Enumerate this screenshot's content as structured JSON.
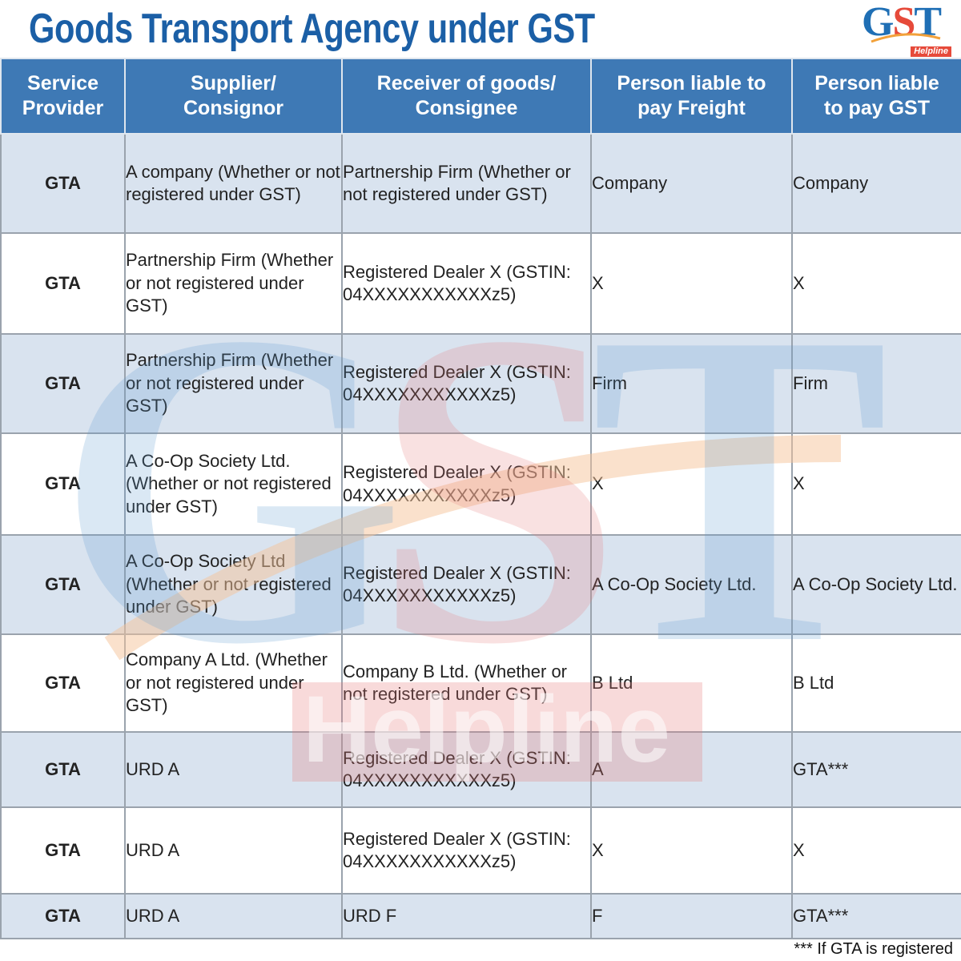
{
  "title": "Goods Transport Agency under GST",
  "logo": {
    "g": "G",
    "s": "S",
    "t": "T",
    "tag": "Helpline"
  },
  "watermark": {
    "letters": "GST",
    "word": "Helpline"
  },
  "headers": {
    "service_provider": "Service Provider",
    "supplier": "Supplier/ Consignor",
    "receiver": "Receiver of goods/ Consignee",
    "freight": "Person liable to pay Freight",
    "gst": "Person liable to pay GST"
  },
  "rows": [
    {
      "sp": "GTA",
      "supplier": "A company (Whether or not registered under GST)",
      "receiver": "Partnership Firm (Whether or not registered under GST)",
      "freight": "Company",
      "gst": "Company"
    },
    {
      "sp": "GTA",
      "supplier": "Partnership Firm (Whether or not registered under GST)",
      "receiver": "Registered Dealer X (GSTIN: 04XXXXXXXXXXXz5)",
      "freight": "X",
      "gst": "X"
    },
    {
      "sp": "GTA",
      "supplier": "Partnership Firm (Whether or not registered under GST)",
      "receiver": "Registered Dealer X (GSTIN: 04XXXXXXXXXXXz5)",
      "freight": "Firm",
      "gst": "Firm"
    },
    {
      "sp": "GTA",
      "supplier": "A Co-Op Society Ltd. (Whether or not registered under GST)",
      "receiver": "Registered Dealer X (GSTIN: 04XXXXXXXXXXXz5)",
      "freight": "X",
      "gst": "X"
    },
    {
      "sp": "GTA",
      "supplier": "A Co-Op Society Ltd (Whether or not registered under GST)",
      "receiver": "Registered Dealer X (GSTIN: 04XXXXXXXXXXXz5)",
      "freight": "A Co-Op Society Ltd.",
      "gst": "A Co-Op Society Ltd."
    },
    {
      "sp": "GTA",
      "supplier": "Company A Ltd. (Whether or not registered under GST)",
      "receiver": "Company B Ltd. (Whether or not registered under GST)",
      "freight": "B Ltd",
      "gst": "B Ltd"
    },
    {
      "sp": "GTA",
      "supplier": "URD A",
      "receiver": "Registered Dealer X (GSTIN: 04XXXXXXXXXXXz5)",
      "freight": "A",
      "gst": "GTA***"
    },
    {
      "sp": "GTA",
      "supplier": "URD A",
      "receiver": "Registered Dealer X (GSTIN: 04XXXXXXXXXXXz5)",
      "freight": "X",
      "gst": "X"
    },
    {
      "sp": "GTA",
      "supplier": "URD A",
      "receiver": "URD F",
      "freight": "F",
      "gst": "GTA***"
    }
  ],
  "footnote": "*** If GTA is registered"
}
